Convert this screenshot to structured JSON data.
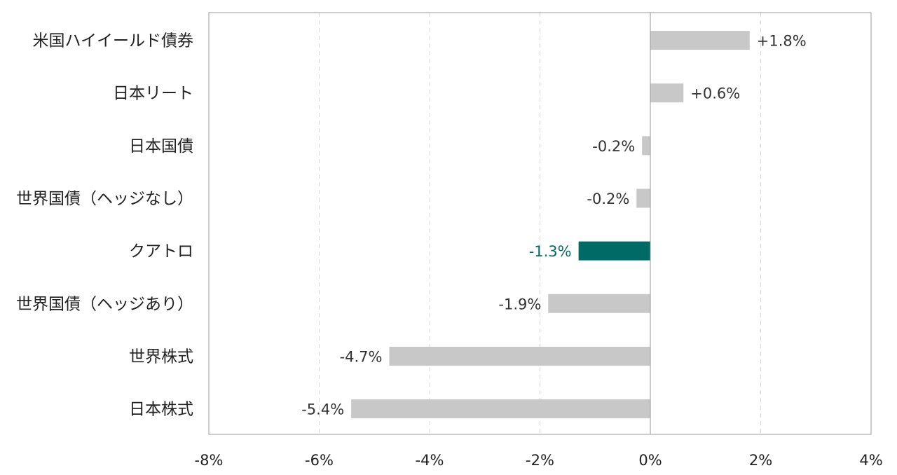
{
  "chart_data": {
    "type": "bar",
    "orientation": "horizontal",
    "categories": [
      "米国ハイイールド債券",
      "日本リート",
      "日本国債",
      "世界国債（ヘッジなし）",
      "クアトロ",
      "世界国債（ヘッジあり）",
      "世界株式",
      "日本株式"
    ],
    "values": [
      1.8,
      0.6,
      -0.15,
      -0.25,
      -1.3,
      -1.85,
      -4.73,
      -5.42
    ],
    "value_labels": [
      "+1.8%",
      "+0.6%",
      "-0.2%",
      "-0.2%",
      "-1.3%",
      "-1.9%",
      "-4.7%",
      "-5.4%"
    ],
    "highlight_category": "クアトロ",
    "xlim": [
      -8,
      4
    ],
    "x_ticks": [
      -8,
      -6,
      -4,
      -2,
      0,
      2,
      4
    ],
    "x_tick_labels": [
      "-8%",
      "-6%",
      "-4%",
      "-2%",
      "0%",
      "2%",
      "4%"
    ],
    "grid": "vertical dashed",
    "colors": {
      "bar": "#c8c8c8",
      "highlight": "#006b66",
      "grid": "#d8d8d8",
      "axis": "#999999"
    }
  }
}
